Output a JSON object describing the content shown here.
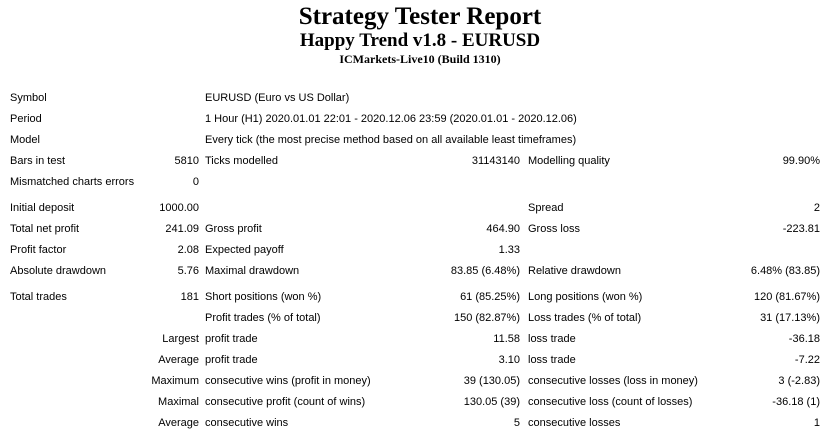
{
  "colors": {
    "background": "#ffffff",
    "text": "#000000"
  },
  "header": {
    "title": "Strategy Tester Report",
    "subtitle": "Happy Trend v1.8 - EURUSD",
    "server": "ICMarkets-Live10 (Build 1310)"
  },
  "report": {
    "rows": [
      {
        "span": true,
        "cells": [
          "Symbol",
          "",
          "EURUSD (Euro vs US Dollar)"
        ]
      },
      {
        "span": true,
        "cells": [
          "Period",
          "",
          "1 Hour (H1) 2020.01.01 22:01 - 2020.12.06 23:59 (2020.01.01 - 2020.12.06)"
        ]
      },
      {
        "span": true,
        "cells": [
          "Model",
          "",
          "Every tick (the most precise method based on all available least timeframes)"
        ]
      },
      {
        "cells": [
          "Bars in test",
          "5810",
          "Ticks modelled",
          "31143140",
          "Modelling quality",
          "99.90%"
        ]
      },
      {
        "cells": [
          "Mismatched charts errors",
          "0",
          "",
          "",
          "",
          ""
        ]
      },
      {
        "gap_before": true,
        "cells": [
          "Initial deposit",
          "1000.00",
          "",
          "",
          "Spread",
          "2"
        ]
      },
      {
        "cells": [
          "Total net profit",
          "241.09",
          "Gross profit",
          "464.90",
          "Gross loss",
          "-223.81"
        ]
      },
      {
        "cells": [
          "Profit factor",
          "2.08",
          "Expected payoff",
          "1.33",
          "",
          ""
        ]
      },
      {
        "cells": [
          "Absolute drawdown",
          "5.76",
          "Maximal drawdown",
          "83.85 (6.48%)",
          "Relative drawdown",
          "6.48% (83.85)"
        ]
      },
      {
        "gap_before": true,
        "cells": [
          "Total trades",
          "181",
          "Short positions (won %)",
          "61 (85.25%)",
          "Long positions (won %)",
          "120 (81.67%)"
        ]
      },
      {
        "cells": [
          "",
          "",
          "Profit trades (% of total)",
          "150 (82.87%)",
          "Loss trades (% of total)",
          "31 (17.13%)"
        ]
      },
      {
        "cells": [
          "",
          "Largest",
          "profit trade",
          "11.58",
          "loss trade",
          "-36.18"
        ]
      },
      {
        "cells": [
          "",
          "Average",
          "profit trade",
          "3.10",
          "loss trade",
          "-7.22"
        ]
      },
      {
        "cells": [
          "",
          "Maximum",
          "consecutive wins (profit in money)",
          "39 (130.05)",
          "consecutive losses (loss in money)",
          "3 (-2.83)"
        ]
      },
      {
        "cells": [
          "",
          "Maximal",
          "consecutive profit (count of wins)",
          "130.05 (39)",
          "consecutive loss (count of losses)",
          "-36.18 (1)"
        ]
      },
      {
        "cells": [
          "",
          "Average",
          "consecutive wins",
          "5",
          "consecutive losses",
          "1"
        ]
      }
    ]
  }
}
